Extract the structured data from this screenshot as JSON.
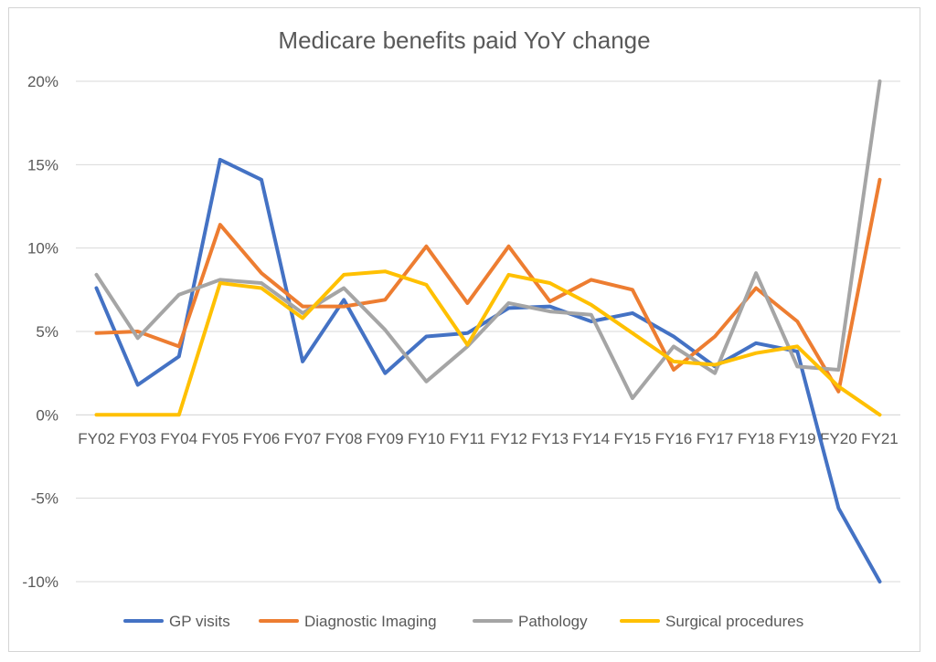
{
  "chart_data": {
    "type": "line",
    "title": "Medicare benefits paid YoY change",
    "xlabel": "",
    "ylabel": "",
    "categories": [
      "FY02",
      "FY03",
      "FY04",
      "FY05",
      "FY06",
      "FY07",
      "FY08",
      "FY09",
      "FY10",
      "FY11",
      "FY12",
      "FY13",
      "FY14",
      "FY15",
      "FY16",
      "FY17",
      "FY18",
      "FY19",
      "FY20",
      "FY21"
    ],
    "ylim": [
      -10,
      20
    ],
    "yticks": [
      {
        "value": 20,
        "label": "20%"
      },
      {
        "value": 15,
        "label": "15%"
      },
      {
        "value": 10,
        "label": "10%"
      },
      {
        "value": 5,
        "label": "5%"
      },
      {
        "value": 0,
        "label": "0%"
      },
      {
        "value": -5,
        "label": "-5%"
      },
      {
        "value": -10,
        "label": "-10%"
      }
    ],
    "grid": true,
    "legend_position": "bottom",
    "series": [
      {
        "name": "GP visits",
        "color": "#4472C4",
        "values": [
          7.6,
          1.8,
          3.5,
          15.3,
          14.1,
          3.2,
          6.9,
          2.5,
          4.7,
          4.9,
          6.4,
          6.5,
          5.6,
          6.1,
          4.7,
          2.9,
          4.3,
          3.8,
          -5.6,
          -10.0
        ]
      },
      {
        "name": "Diagnostic Imaging",
        "color": "#ED7D31",
        "values": [
          4.9,
          5.0,
          4.1,
          11.4,
          8.5,
          6.5,
          6.5,
          6.9,
          10.1,
          6.7,
          10.1,
          6.8,
          8.1,
          7.5,
          2.7,
          4.7,
          7.6,
          5.6,
          1.4,
          14.1
        ]
      },
      {
        "name": "Pathology",
        "color": "#A5A5A5",
        "values": [
          8.4,
          4.6,
          7.2,
          8.1,
          7.9,
          6.1,
          7.6,
          5.1,
          2.0,
          4.1,
          6.7,
          6.2,
          6.0,
          1.0,
          4.1,
          2.5,
          8.5,
          2.9,
          2.7,
          20.0
        ]
      },
      {
        "name": "Surgical procedures",
        "color": "#FFC000",
        "values": [
          0.0,
          0.0,
          0.0,
          7.9,
          7.6,
          5.8,
          8.4,
          8.6,
          7.8,
          4.2,
          8.4,
          7.9,
          6.6,
          4.9,
          3.2,
          3.0,
          3.7,
          4.1,
          1.7,
          0.0
        ]
      }
    ]
  }
}
